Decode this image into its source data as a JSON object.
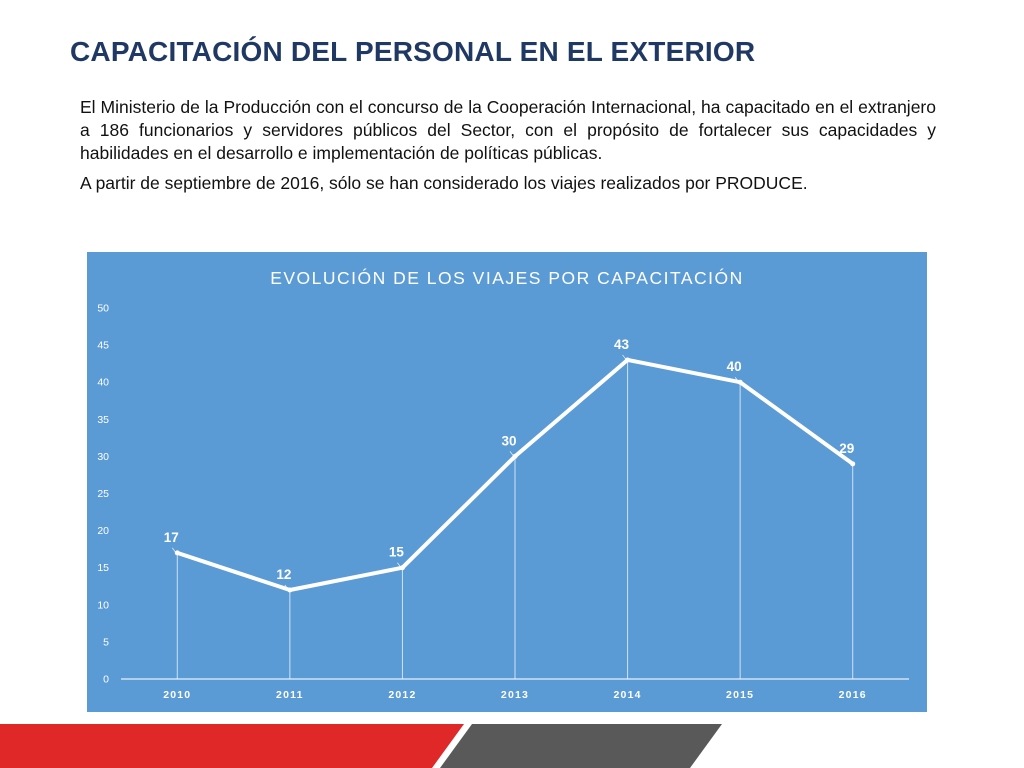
{
  "slide": {
    "title": "CAPACITACIÓN DEL PERSONAL EN EL EXTERIOR",
    "paragraph_1": "El Ministerio de la Producción con el concurso de la Cooperación Internacional, ha capacitado en el extranjero a 186 funcionarios y servidores públicos del Sector, con el propósito de fortalecer sus capacidades y habilidades en el desarrollo e implementación de políticas públicas.",
    "paragraph_2": "A partir de septiembre de 2016, sólo se han considerado los viajes realizados por PRODUCE."
  },
  "colors": {
    "title": "#1f3864",
    "panel_background": "#5b9bd5",
    "series_line": "#ffffff",
    "band_red": "#e02828",
    "band_gray": "#595959"
  },
  "chart_data": {
    "type": "line",
    "title": "EVOLUCIÓN DE LOS VIAJES POR CAPACITACIÓN",
    "categories": [
      "2010",
      "2011",
      "2012",
      "2013",
      "2014",
      "2015",
      "2016"
    ],
    "series": [
      {
        "values": [
          17,
          12,
          15,
          30,
          43,
          40,
          29
        ]
      }
    ],
    "ylim": [
      0,
      50
    ],
    "y_ticks": [
      0,
      5,
      10,
      15,
      20,
      25,
      30,
      35,
      40,
      45,
      50
    ],
    "data_labels": true,
    "drop_lines": true,
    "grid": false,
    "legend": "none"
  }
}
